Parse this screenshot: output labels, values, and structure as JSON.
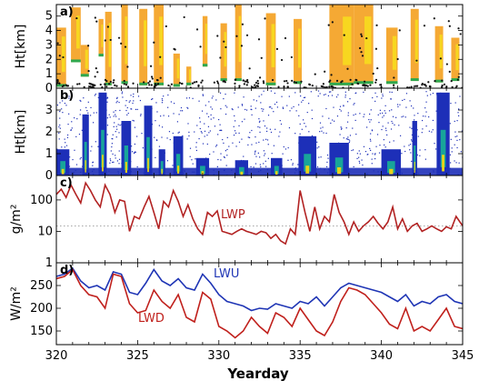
{
  "figure": {
    "xlabel": "Yearday",
    "xticks": [
      "320",
      "325",
      "330",
      "335",
      "340",
      "345"
    ],
    "xlim": [
      320,
      345
    ]
  },
  "colors": {
    "lwp": "#b22222",
    "lwu": "#1f35b5",
    "lwd": "#c0201c",
    "radar_orange": "#f39a10",
    "radar_yellow": "#f7e21c",
    "lidar_blue": "#1d2fb8"
  },
  "chart_data": [
    {
      "panel": "a)",
      "type": "heatmap",
      "ylabel": "Ht[km]",
      "ylim": [
        0,
        5.8
      ],
      "yticks": [
        "0",
        "1",
        "2",
        "3",
        "4",
        "5"
      ],
      "cloud_columns": [
        {
          "x0": 320.0,
          "x1": 320.6,
          "top": 4.2,
          "base": 0.1
        },
        {
          "x0": 320.9,
          "x1": 321.5,
          "top": 5.6,
          "base": 1.8
        },
        {
          "x0": 321.5,
          "x1": 322.0,
          "top": 3.0,
          "base": 0.8
        },
        {
          "x0": 322.6,
          "x1": 322.9,
          "top": 4.8,
          "base": 2.2
        },
        {
          "x0": 323.0,
          "x1": 323.4,
          "top": 5.3,
          "base": 0.2
        },
        {
          "x0": 324.0,
          "x1": 324.4,
          "top": 5.8,
          "base": 0.3
        },
        {
          "x0": 325.1,
          "x1": 325.6,
          "top": 5.5,
          "base": 0.2
        },
        {
          "x0": 326.0,
          "x1": 326.6,
          "top": 5.8,
          "base": 0.2
        },
        {
          "x0": 327.2,
          "x1": 327.6,
          "top": 2.4,
          "base": 0.1
        },
        {
          "x0": 328.0,
          "x1": 328.3,
          "top": 1.5,
          "base": 0.2
        },
        {
          "x0": 329.0,
          "x1": 329.3,
          "top": 5.0,
          "base": 1.5
        },
        {
          "x0": 330.1,
          "x1": 330.5,
          "top": 4.5,
          "base": 0.5
        },
        {
          "x0": 331.0,
          "x1": 331.4,
          "top": 5.8,
          "base": 0.5
        },
        {
          "x0": 332.9,
          "x1": 333.5,
          "top": 5.2,
          "base": 0.2
        },
        {
          "x0": 334.6,
          "x1": 335.1,
          "top": 4.8,
          "base": 0.3
        },
        {
          "x0": 336.8,
          "x1": 338.3,
          "top": 5.8,
          "base": 0.2
        },
        {
          "x0": 338.3,
          "x1": 339.5,
          "top": 5.8,
          "base": 0.3
        },
        {
          "x0": 340.3,
          "x1": 341.0,
          "top": 4.2,
          "base": 0.3
        },
        {
          "x0": 341.8,
          "x1": 342.3,
          "top": 5.5,
          "base": 0.5
        },
        {
          "x0": 343.3,
          "x1": 343.8,
          "top": 4.3,
          "base": 0.4
        },
        {
          "x0": 344.3,
          "x1": 344.8,
          "top": 3.5,
          "base": 0.5
        }
      ]
    },
    {
      "panel": "b)",
      "type": "heatmap",
      "ylabel": "Ht[km]",
      "ylim": [
        0,
        4
      ],
      "yticks": [
        "0",
        "1",
        "2",
        "3"
      ],
      "cloud_columns": [
        {
          "x0": 320.0,
          "x1": 320.8,
          "top": 1.2
        },
        {
          "x0": 321.6,
          "x1": 322.0,
          "top": 2.8
        },
        {
          "x0": 322.6,
          "x1": 323.1,
          "top": 3.8
        },
        {
          "x0": 324.0,
          "x1": 324.6,
          "top": 2.5
        },
        {
          "x0": 325.4,
          "x1": 325.9,
          "top": 3.2
        },
        {
          "x0": 326.3,
          "x1": 326.7,
          "top": 1.2
        },
        {
          "x0": 327.2,
          "x1": 327.8,
          "top": 1.8
        },
        {
          "x0": 328.6,
          "x1": 329.4,
          "top": 0.8
        },
        {
          "x0": 331.0,
          "x1": 331.8,
          "top": 0.7
        },
        {
          "x0": 333.2,
          "x1": 333.9,
          "top": 0.8
        },
        {
          "x0": 334.9,
          "x1": 336.0,
          "top": 1.8
        },
        {
          "x0": 336.8,
          "x1": 338.0,
          "top": 1.5
        },
        {
          "x0": 340.0,
          "x1": 341.2,
          "top": 1.2
        },
        {
          "x0": 341.9,
          "x1": 342.2,
          "top": 2.5
        },
        {
          "x0": 343.4,
          "x1": 344.2,
          "top": 3.8
        }
      ]
    },
    {
      "panel": "c)",
      "type": "line",
      "ylabel": "g/m²",
      "yscale": "log",
      "ylim": [
        1,
        600
      ],
      "yticks": [
        "1",
        "10",
        "100"
      ],
      "reference_line": 15,
      "series": [
        {
          "name": "LWP",
          "x": [
            320,
            320.3,
            320.6,
            320.9,
            321.2,
            321.5,
            321.8,
            322.1,
            322.4,
            322.7,
            323.0,
            323.3,
            323.6,
            323.9,
            324.2,
            324.5,
            324.8,
            325.1,
            325.4,
            325.7,
            326.0,
            326.3,
            326.6,
            326.9,
            327.2,
            327.5,
            327.8,
            328.1,
            328.4,
            328.7,
            329.0,
            329.3,
            329.6,
            329.9,
            330.2,
            330.5,
            330.8,
            331.1,
            331.4,
            331.7,
            332.0,
            332.3,
            332.6,
            332.9,
            333.2,
            333.5,
            333.8,
            334.1,
            334.4,
            334.7,
            335.0,
            335.3,
            335.6,
            335.9,
            336.2,
            336.5,
            336.8,
            337.1,
            337.4,
            337.7,
            338.0,
            338.3,
            338.6,
            338.9,
            339.2,
            339.5,
            339.8,
            340.1,
            340.4,
            340.7,
            341.0,
            341.3,
            341.6,
            341.9,
            342.2,
            342.5,
            342.8,
            343.1,
            343.4,
            343.7,
            344.0,
            344.3,
            344.6,
            345.0
          ],
          "y": [
            150,
            220,
            120,
            300,
            150,
            80,
            350,
            200,
            100,
            60,
            300,
            150,
            40,
            100,
            90,
            10,
            30,
            25,
            60,
            130,
            40,
            12,
            90,
            60,
            200,
            90,
            30,
            70,
            25,
            12,
            8,
            40,
            30,
            45,
            10,
            9,
            8,
            10,
            12,
            10,
            9,
            8,
            10,
            9,
            6,
            8,
            5,
            4,
            12,
            8,
            200,
            40,
            10,
            60,
            12,
            30,
            20,
            150,
            40,
            20,
            8,
            20,
            10,
            15,
            20,
            30,
            18,
            12,
            20,
            60,
            12,
            25,
            10,
            15,
            18,
            10,
            12,
            15,
            12,
            10,
            14,
            12,
            30,
            15
          ]
        }
      ]
    },
    {
      "panel": "d)",
      "type": "line",
      "ylabel": "W/m²",
      "ylim": [
        120,
        300
      ],
      "yticks": [
        "150",
        "200",
        "250"
      ],
      "series": [
        {
          "name": "LWU",
          "x": [
            320,
            320.5,
            321,
            321.5,
            322,
            322.5,
            323,
            323.5,
            324,
            324.5,
            325,
            325.5,
            326,
            326.5,
            327,
            327.5,
            328,
            328.5,
            329,
            329.5,
            330,
            330.5,
            331,
            331.5,
            332,
            332.5,
            333,
            333.5,
            334,
            334.5,
            335,
            335.5,
            336,
            336.5,
            337,
            337.5,
            338,
            338.5,
            339,
            339.5,
            340,
            340.5,
            341,
            341.5,
            342,
            342.5,
            343,
            343.5,
            344,
            344.5,
            345
          ],
          "y": [
            270,
            275,
            288,
            260,
            245,
            250,
            240,
            280,
            275,
            235,
            230,
            255,
            285,
            260,
            250,
            265,
            245,
            240,
            275,
            255,
            230,
            215,
            210,
            205,
            195,
            200,
            198,
            210,
            205,
            200,
            215,
            210,
            225,
            205,
            225,
            245,
            255,
            250,
            245,
            240,
            235,
            225,
            215,
            230,
            205,
            215,
            210,
            225,
            230,
            215,
            210
          ]
        },
        {
          "name": "LWD",
          "x": [
            320,
            320.5,
            321,
            321.5,
            322,
            322.5,
            323,
            323.5,
            324,
            324.5,
            325,
            325.5,
            326,
            326.5,
            327,
            327.5,
            328,
            328.5,
            329,
            329.5,
            330,
            330.5,
            331,
            331.5,
            332,
            332.5,
            333,
            333.5,
            334,
            334.5,
            335,
            335.5,
            336,
            336.5,
            337,
            337.5,
            338,
            338.5,
            339,
            339.5,
            340,
            340.5,
            341,
            341.5,
            342,
            342.5,
            343,
            343.5,
            344,
            344.5,
            345
          ],
          "y": [
            265,
            270,
            285,
            250,
            230,
            225,
            200,
            275,
            270,
            210,
            190,
            195,
            240,
            215,
            200,
            230,
            180,
            170,
            235,
            220,
            160,
            150,
            135,
            150,
            180,
            160,
            145,
            190,
            180,
            160,
            200,
            175,
            150,
            140,
            170,
            215,
            245,
            240,
            230,
            210,
            190,
            165,
            155,
            200,
            150,
            160,
            150,
            175,
            200,
            160,
            155
          ]
        }
      ],
      "annotations": [
        "LWU",
        "LWD"
      ]
    }
  ]
}
